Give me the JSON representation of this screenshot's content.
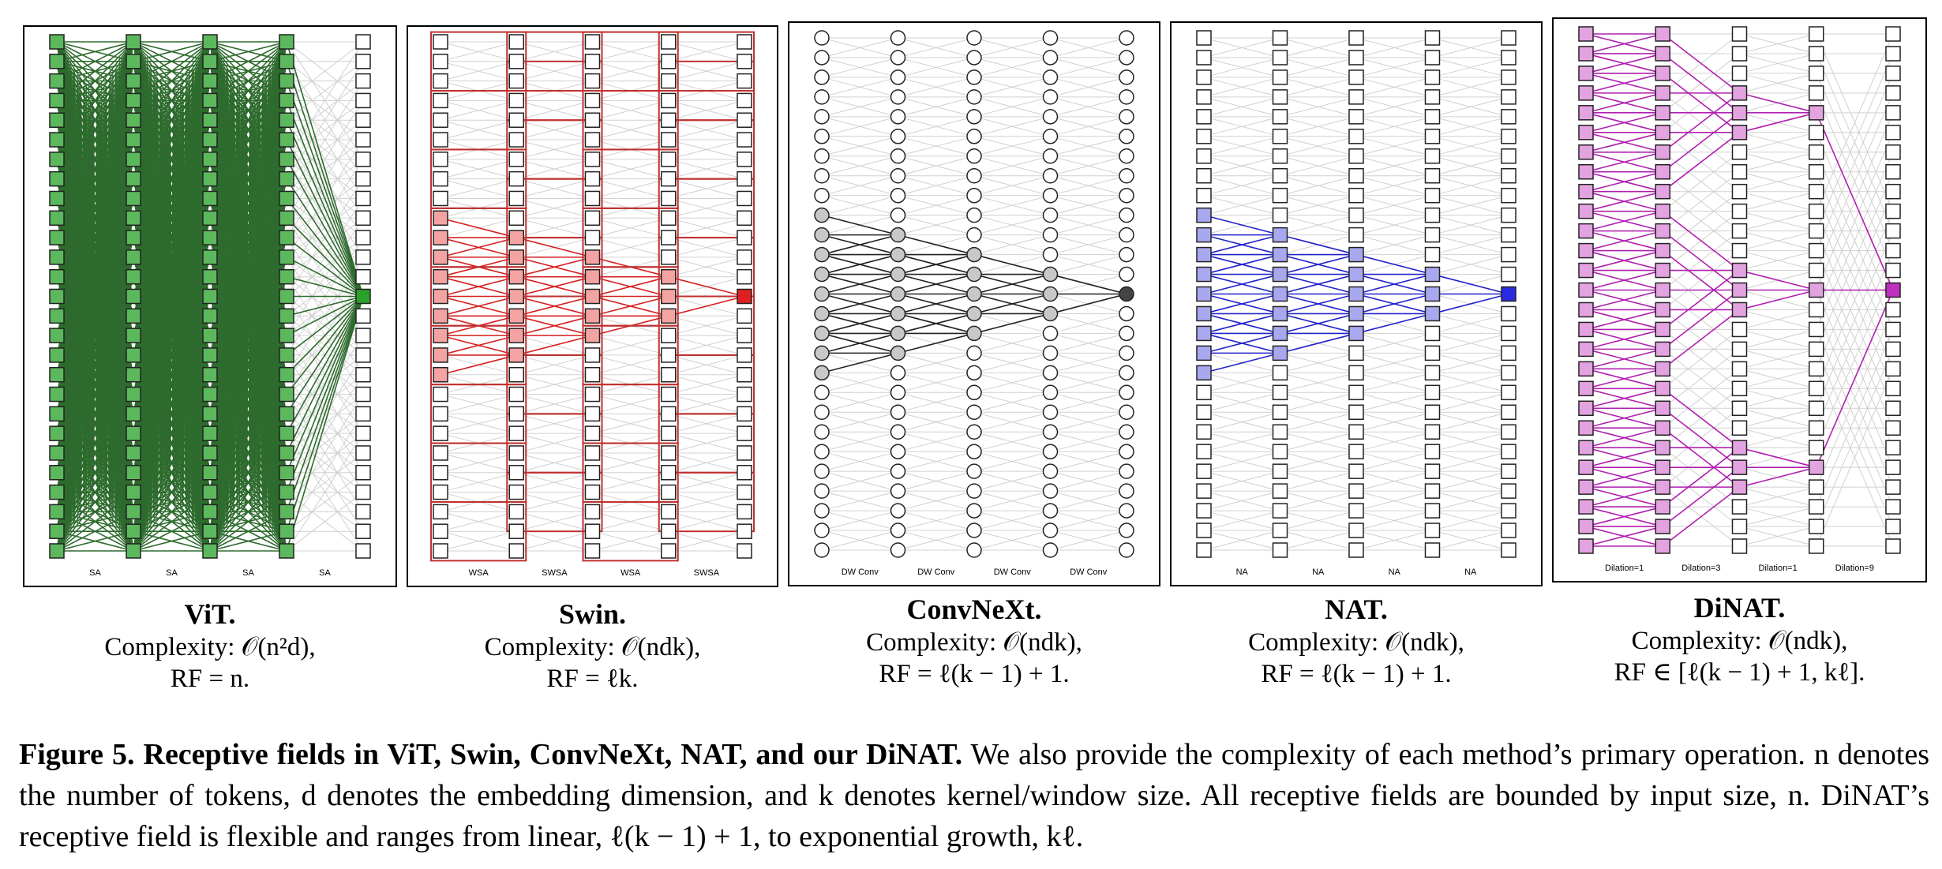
{
  "panels": [
    {
      "id": "vit",
      "title": "ViT",
      "complexity": "Complexity: 𝒪(n²d),",
      "rf": "RF = n.",
      "layer_labels": [
        "SA",
        "SA",
        "SA",
        "SA"
      ],
      "node_shape": "square",
      "color_fill": "#5cb85c",
      "color_edge": "#2e6b2e",
      "color_target": "#2ba02b"
    },
    {
      "id": "swin",
      "title": "Swin",
      "complexity": "Complexity: 𝒪(ndk),",
      "rf": "RF = ℓk.",
      "layer_labels": [
        "WSA",
        "SWSA",
        "WSA",
        "SWSA"
      ],
      "node_shape": "square",
      "color_fill": "#f4a3a3",
      "color_edge": "#d62020",
      "color_target": "#e02020"
    },
    {
      "id": "convnext",
      "title": "ConvNeXt",
      "complexity": "Complexity: 𝒪(ndk),",
      "rf": "RF = ℓ(k − 1) + 1.",
      "layer_labels": [
        "DW Conv",
        "DW Conv",
        "DW Conv",
        "DW Conv"
      ],
      "node_shape": "circle",
      "color_fill": "#c8c8c8",
      "color_edge": "#222222",
      "color_target": "#444444"
    },
    {
      "id": "nat",
      "title": "NAT",
      "complexity": "Complexity: 𝒪(ndk),",
      "rf": "RF = ℓ(k − 1) + 1.",
      "layer_labels": [
        "NA",
        "NA",
        "NA",
        "NA"
      ],
      "node_shape": "square",
      "color_fill": "#a8a8f0",
      "color_edge": "#2222cc",
      "color_target": "#2a2ae0"
    },
    {
      "id": "dinat",
      "title": "DiNAT",
      "complexity": "Complexity: 𝒪(ndk),",
      "rf": "RF ∈ [ℓ(k − 1) + 1, kℓ].",
      "layer_labels": [
        "Dilation=1",
        "Dilation=3",
        "Dilation=1",
        "Dilation=9"
      ],
      "node_shape": "square",
      "color_fill": "#e3a3e0",
      "color_edge": "#b020b0",
      "color_target": "#c030c0"
    }
  ],
  "caption": {
    "label": "Figure 5.",
    "bold_title": "Receptive fields in ViT, Swin, ConvNeXt, NAT, and our DiNAT.",
    "text": "We also provide the complexity of each method’s primary operation. n denotes the number of tokens, d denotes the embedding dimension, and k denotes kernel/window size. All receptive fields are bounded by input size, n. DiNAT’s receptive field is flexible and ranges from linear, ℓ(k − 1) + 1, to exponential growth, kℓ."
  }
}
